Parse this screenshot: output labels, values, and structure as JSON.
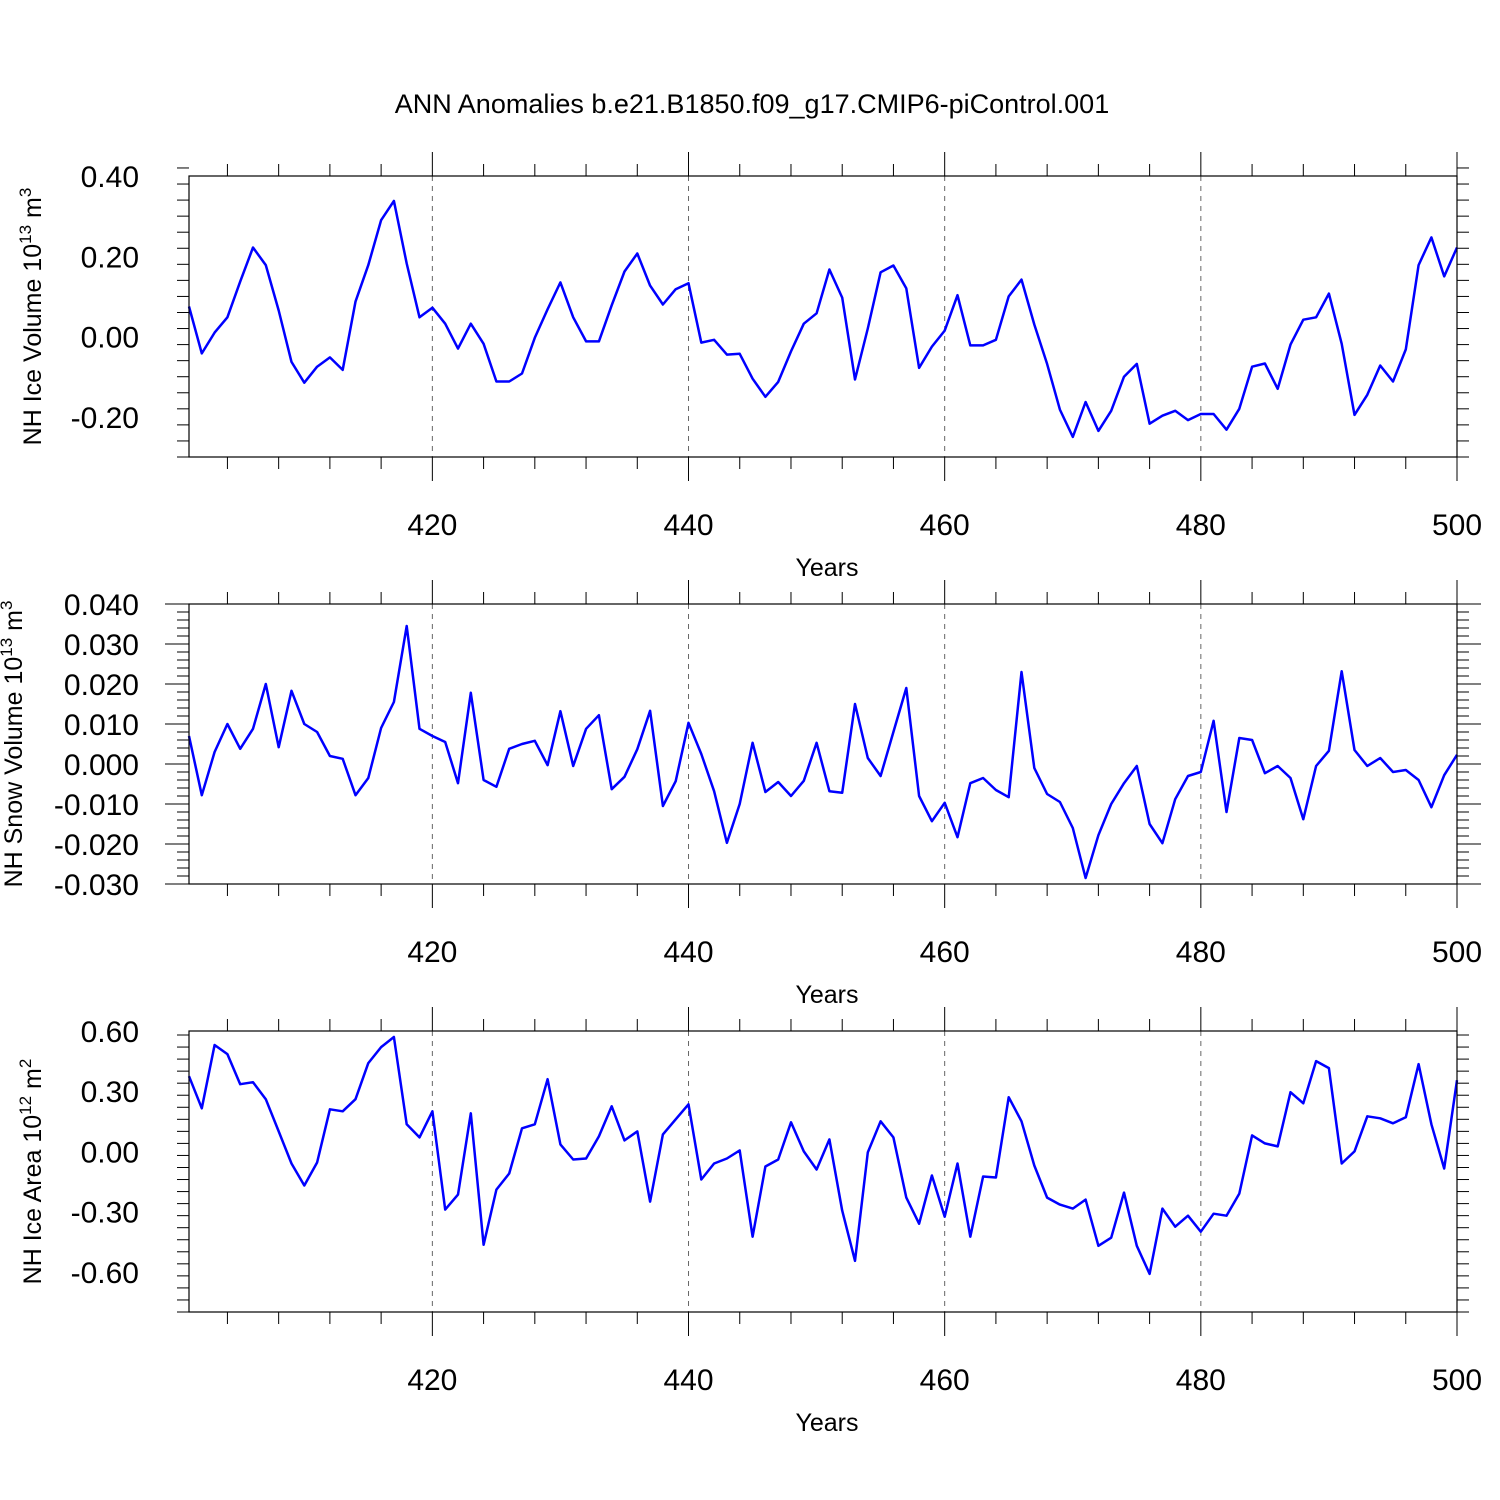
{
  "title": "ANN Anomalies b.e21.B1850.f09_g17.CMIP6-piControl.001",
  "line_color": "#0000ff",
  "chart_data": [
    {
      "type": "line",
      "ylabel_main": "NH Ice Volume 10",
      "ylabel_exp": "13",
      "ylabel_unit": " m",
      "ylabel_unit_exp": "3",
      "xlabel": "Years",
      "xlim": [
        401,
        500
      ],
      "ylim": [
        -0.3,
        0.4
      ],
      "yticks": [
        -0.2,
        0.0,
        0.2,
        0.4
      ],
      "ytick_labels": [
        "-0.20",
        "0.00",
        "0.20",
        "0.40"
      ],
      "xticks": [
        420,
        440,
        460,
        480,
        500
      ],
      "xtick_labels": [
        "420",
        "440",
        "460",
        "480",
        "500"
      ],
      "grid": "vertical dashed at major x ticks",
      "x_start": 401,
      "values": [
        0.075,
        -0.042,
        0.01,
        0.048,
        0.137,
        0.222,
        0.178,
        0.065,
        -0.063,
        -0.115,
        -0.075,
        -0.052,
        -0.083,
        0.087,
        0.178,
        0.29,
        0.338,
        0.182,
        0.048,
        0.072,
        0.032,
        -0.03,
        0.032,
        -0.018,
        -0.112,
        -0.112,
        -0.092,
        -0.003,
        0.068,
        0.135,
        0.048,
        -0.012,
        -0.012,
        0.078,
        0.162,
        0.207,
        0.127,
        0.08,
        0.118,
        0.133,
        -0.015,
        -0.008,
        -0.045,
        -0.043,
        -0.105,
        -0.15,
        -0.113,
        -0.037,
        0.032,
        0.058,
        0.167,
        0.097,
        -0.107,
        0.02,
        0.16,
        0.177,
        0.12,
        -0.078,
        -0.025,
        0.015,
        0.103,
        -0.022,
        -0.022,
        -0.008,
        0.1,
        0.142,
        0.03,
        -0.068,
        -0.182,
        -0.25,
        -0.163,
        -0.235,
        -0.185,
        -0.1,
        -0.068,
        -0.217,
        -0.197,
        -0.185,
        -0.208,
        -0.193,
        -0.193,
        -0.232,
        -0.18,
        -0.075,
        -0.067,
        -0.13,
        -0.02,
        0.042,
        0.048,
        0.107,
        -0.018,
        -0.195,
        -0.145,
        -0.072,
        -0.112,
        -0.032,
        0.178,
        0.247,
        0.15,
        0.222
      ]
    },
    {
      "type": "line",
      "ylabel_main": "NH Snow Volume 10",
      "ylabel_exp": "13",
      "ylabel_unit": " m",
      "ylabel_unit_exp": "3",
      "xlabel": "Years",
      "xlim": [
        401,
        500
      ],
      "ylim": [
        -0.03,
        0.04
      ],
      "yticks": [
        -0.03,
        -0.02,
        -0.01,
        0.0,
        0.01,
        0.02,
        0.03,
        0.04
      ],
      "ytick_labels": [
        "-0.030",
        "-0.020",
        "-0.010",
        "0.000",
        "0.010",
        "0.020",
        "0.030",
        "0.040"
      ],
      "xticks": [
        420,
        440,
        460,
        480,
        500
      ],
      "xtick_labels": [
        "420",
        "440",
        "460",
        "480",
        "500"
      ],
      "grid": "vertical dashed at major x ticks",
      "x_start": 401,
      "values": [
        0.007,
        -0.0078,
        0.003,
        0.01,
        0.0038,
        0.0088,
        0.02,
        0.0042,
        0.0183,
        0.01,
        0.008,
        0.002,
        0.0013,
        -0.0078,
        -0.0035,
        0.009,
        0.0155,
        0.0345,
        0.0088,
        0.007,
        0.0055,
        -0.0048,
        0.0178,
        -0.004,
        -0.0057,
        0.0038,
        0.005,
        0.0058,
        -0.0003,
        0.0132,
        -0.0005,
        0.0088,
        0.0122,
        -0.0063,
        -0.0032,
        0.0037,
        0.0133,
        -0.0105,
        -0.0043,
        0.0103,
        0.0025,
        -0.0068,
        -0.0197,
        -0.01,
        0.0053,
        -0.007,
        -0.0045,
        -0.008,
        -0.0042,
        0.0053,
        -0.0068,
        -0.0072,
        0.015,
        0.0015,
        -0.003,
        0.008,
        0.019,
        -0.008,
        -0.0143,
        -0.0097,
        -0.0183,
        -0.0048,
        -0.0035,
        -0.0065,
        -0.0083,
        0.023,
        -0.001,
        -0.0075,
        -0.0095,
        -0.016,
        -0.0285,
        -0.0178,
        -0.01,
        -0.0048,
        -0.0005,
        -0.015,
        -0.0198,
        -0.0088,
        -0.003,
        -0.002,
        0.0108,
        -0.012,
        0.0065,
        0.006,
        -0.0023,
        -0.0005,
        -0.0035,
        -0.0138,
        -0.0005,
        0.0033,
        0.0232,
        0.0035,
        -0.0005,
        0.0015,
        -0.002,
        -0.0015,
        -0.004,
        -0.0108,
        -0.0028,
        0.0023
      ]
    },
    {
      "type": "line",
      "ylabel_main": "NH Ice Area 10",
      "ylabel_exp": "12",
      "ylabel_unit": " m",
      "ylabel_unit_exp": "2",
      "xlabel": "Years",
      "xlim": [
        401,
        500
      ],
      "ylim": [
        -0.8,
        0.6
      ],
      "yticks": [
        -0.6,
        -0.3,
        0.0,
        0.3,
        0.6
      ],
      "ytick_labels": [
        "-0.60",
        "-0.30",
        "0.00",
        "0.30",
        "0.60"
      ],
      "xticks": [
        420,
        440,
        460,
        480,
        500
      ],
      "xtick_labels": [
        "420",
        "440",
        "460",
        "480",
        "500"
      ],
      "grid": "vertical dashed at major x ticks",
      "x_start": 401,
      "values": [
        0.375,
        0.215,
        0.53,
        0.485,
        0.335,
        0.345,
        0.26,
        0.1,
        -0.06,
        -0.17,
        -0.055,
        0.21,
        0.2,
        0.26,
        0.44,
        0.52,
        0.57,
        0.135,
        0.07,
        0.2,
        -0.29,
        -0.215,
        0.19,
        -0.465,
        -0.19,
        -0.11,
        0.115,
        0.135,
        0.36,
        0.035,
        -0.04,
        -0.035,
        0.075,
        0.225,
        0.055,
        0.1,
        -0.25,
        0.085,
        0.16,
        0.235,
        -0.14,
        -0.06,
        -0.035,
        0.005,
        -0.425,
        -0.075,
        -0.04,
        0.145,
        0.0,
        -0.09,
        0.06,
        -0.295,
        -0.545,
        -0.005,
        0.15,
        0.07,
        -0.23,
        -0.36,
        -0.12,
        -0.325,
        -0.06,
        -0.425,
        -0.125,
        -0.13,
        0.27,
        0.15,
        -0.07,
        -0.23,
        -0.265,
        -0.285,
        -0.24,
        -0.47,
        -0.43,
        -0.205,
        -0.47,
        -0.61,
        -0.285,
        -0.375,
        -0.32,
        -0.4,
        -0.31,
        -0.32,
        -0.21,
        0.08,
        0.04,
        0.025,
        0.295,
        0.24,
        0.45,
        0.415,
        -0.06,
        0.0,
        0.175,
        0.165,
        0.14,
        0.17,
        0.435,
        0.135,
        -0.085,
        0.355
      ]
    }
  ]
}
